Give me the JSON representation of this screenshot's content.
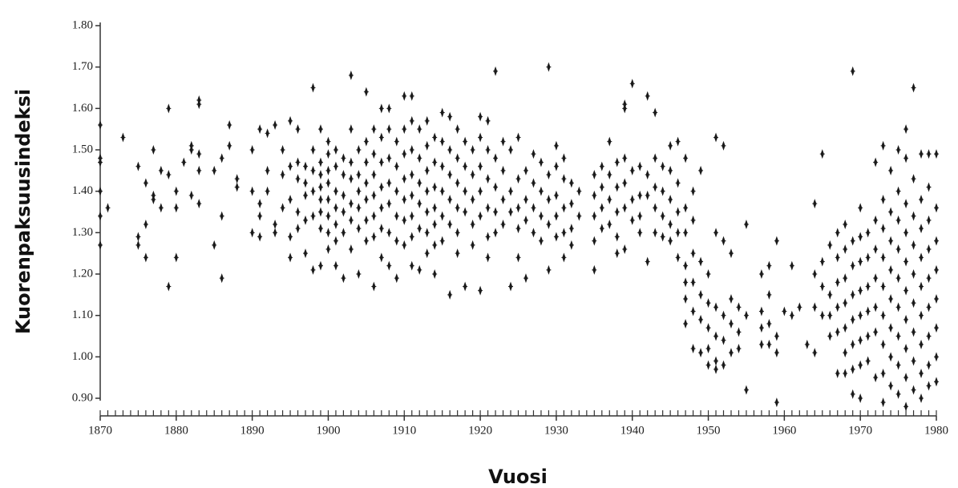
{
  "chart_data": {
    "type": "scatter",
    "xlabel": "Vuosi",
    "ylabel": "Kuorenpaksuusindeksi",
    "color": "#1a1a1a",
    "xlim": [
      1870,
      1980
    ],
    "ylim": [
      0.9,
      1.8
    ],
    "xticks": [
      1870,
      1880,
      1890,
      1900,
      1910,
      1920,
      1930,
      1940,
      1950,
      1960,
      1970,
      1980
    ],
    "xminorticks": [
      1870,
      1871,
      1872,
      1873,
      1874,
      1875,
      1876,
      1877,
      1878,
      1879,
      1880,
      1881,
      1882,
      1883,
      1884,
      1885,
      1886,
      1887,
      1888,
      1889,
      1890,
      1891,
      1892,
      1893,
      1894,
      1895,
      1896,
      1897,
      1898,
      1899,
      1900,
      1901,
      1902,
      1903,
      1904,
      1905,
      1906,
      1907,
      1908,
      1909,
      1910,
      1911,
      1912,
      1913,
      1914,
      1915,
      1916,
      1917,
      1918,
      1919,
      1920,
      1921,
      1922,
      1923,
      1924,
      1925,
      1926,
      1927,
      1928,
      1929,
      1930,
      1931,
      1932,
      1933,
      1934,
      1935,
      1936,
      1937,
      1938,
      1939,
      1940,
      1941,
      1942,
      1943,
      1944,
      1945,
      1946,
      1947,
      1948,
      1949,
      1950,
      1951,
      1952,
      1953,
      1954,
      1955,
      1956,
      1957,
      1958,
      1959,
      1960,
      1961,
      1962,
      1963,
      1964,
      1965,
      1966,
      1967,
      1968,
      1969,
      1970,
      1971,
      1972,
      1973,
      1974,
      1975,
      1976,
      1977,
      1978,
      1979,
      1980
    ],
    "yticks": [
      {
        "value": 0.9,
        "label": "0.90"
      },
      {
        "value": 1.0,
        "label": "1.00"
      },
      {
        "value": 1.1,
        "label": "1.10"
      },
      {
        "value": 1.2,
        "label": "1.20"
      },
      {
        "value": 1.3,
        "label": "1.30"
      },
      {
        "value": 1.4,
        "label": "1.40"
      },
      {
        "value": 1.5,
        "label": "1.50"
      },
      {
        "value": 1.6,
        "label": "1.60"
      },
      {
        "value": 1.7,
        "label": "1.70"
      },
      {
        "value": 1.8,
        "label": "1.80"
      }
    ],
    "x": [
      1870,
      1870,
      1870,
      1870,
      1870,
      1870,
      1871,
      1873,
      1875,
      1875,
      1875,
      1876,
      1876,
      1876,
      1877,
      1877,
      1877,
      1878,
      1878,
      1879,
      1879,
      1879,
      1880,
      1880,
      1880,
      1881,
      1882,
      1882,
      1882,
      1883,
      1883,
      1883,
      1883,
      1883,
      1885,
      1885,
      1886,
      1886,
      1886,
      1887,
      1887,
      1888,
      1888,
      1890,
      1890,
      1890,
      1891,
      1891,
      1891,
      1891,
      1892,
      1892,
      1892,
      1893,
      1893,
      1893,
      1894,
      1894,
      1894,
      1895,
      1895,
      1895,
      1895,
      1895,
      1896,
      1896,
      1896,
      1896,
      1896,
      1897,
      1897,
      1897,
      1897,
      1897,
      1898,
      1898,
      1898,
      1898,
      1898,
      1898,
      1899,
      1899,
      1899,
      1899,
      1899,
      1899,
      1899,
      1899,
      1900,
      1900,
      1900,
      1900,
      1900,
      1900,
      1900,
      1900,
      1901,
      1901,
      1901,
      1901,
      1901,
      1901,
      1901,
      1902,
      1902,
      1902,
      1902,
      1902,
      1902,
      1903,
      1903,
      1903,
      1903,
      1903,
      1903,
      1903,
      1904,
      1904,
      1904,
      1904,
      1904,
      1904,
      1905,
      1905,
      1905,
      1905,
      1905,
      1905,
      1905,
      1906,
      1906,
      1906,
      1906,
      1906,
      1906,
      1906,
      1907,
      1907,
      1907,
      1907,
      1907,
      1907,
      1907,
      1908,
      1908,
      1908,
      1908,
      1908,
      1908,
      1908,
      1909,
      1909,
      1909,
      1909,
      1909,
      1909,
      1910,
      1910,
      1910,
      1910,
      1910,
      1910,
      1910,
      1911,
      1911,
      1911,
      1911,
      1911,
      1911,
      1911,
      1911,
      1912,
      1912,
      1912,
      1912,
      1912,
      1912,
      1913,
      1913,
      1913,
      1913,
      1913,
      1913,
      1913,
      1914,
      1914,
      1914,
      1914,
      1914,
      1914,
      1914,
      1915,
      1915,
      1915,
      1915,
      1915,
      1915,
      1916,
      1916,
      1916,
      1916,
      1916,
      1916,
      1917,
      1917,
      1917,
      1917,
      1917,
      1917,
      1918,
      1918,
      1918,
      1918,
      1918,
      1919,
      1919,
      1919,
      1919,
      1919,
      1920,
      1920,
      1920,
      1920,
      1920,
      1920,
      1921,
      1921,
      1921,
      1921,
      1921,
      1921,
      1922,
      1922,
      1922,
      1922,
      1922,
      1923,
      1923,
      1923,
      1923,
      1924,
      1924,
      1924,
      1924,
      1925,
      1925,
      1925,
      1925,
      1925,
      1926,
      1926,
      1926,
      1926,
      1927,
      1927,
      1927,
      1927,
      1928,
      1928,
      1928,
      1928,
      1929,
      1929,
      1929,
      1929,
      1929,
      1930,
      1930,
      1930,
      1930,
      1930,
      1931,
      1931,
      1931,
      1931,
      1931,
      1932,
      1932,
      1932,
      1932,
      1933,
      1933,
      1935,
      1935,
      1935,
      1935,
      1935,
      1936,
      1936,
      1936,
      1936,
      1937,
      1937,
      1937,
      1937,
      1938,
      1938,
      1938,
      1938,
      1938,
      1939,
      1939,
      1939,
      1939,
      1939,
      1939,
      1940,
      1940,
      1940,
      1940,
      1941,
      1941,
      1941,
      1941,
      1942,
      1942,
      1942,
      1942,
      1943,
      1943,
      1943,
      1943,
      1943,
      1944,
      1944,
      1944,
      1944,
      1945,
      1945,
      1945,
      1945,
      1945,
      1946,
      1946,
      1946,
      1946,
      1946,
      1947,
      1947,
      1947,
      1947,
      1947,
      1947,
      1947,
      1948,
      1948,
      1948,
      1948,
      1948,
      1948,
      1949,
      1949,
      1949,
      1949,
      1949,
      1950,
      1950,
      1950,
      1950,
      1950,
      1951,
      1951,
      1951,
      1951,
      1951,
      1951,
      1952,
      1952,
      1952,
      1952,
      1952,
      1953,
      1953,
      1953,
      1953,
      1954,
      1954,
      1954,
      1955,
      1955,
      1955,
      1957,
      1957,
      1957,
      1957,
      1958,
      1958,
      1958,
      1958,
      1959,
      1959,
      1959,
      1959,
      1960,
      1961,
      1961,
      1962,
      1963,
      1964,
      1964,
      1964,
      1964,
      1965,
      1965,
      1965,
      1965,
      1966,
      1966,
      1966,
      1966,
      1967,
      1967,
      1967,
      1967,
      1967,
      1967,
      1968,
      1968,
      1968,
      1968,
      1968,
      1968,
      1968,
      1969,
      1969,
      1969,
      1969,
      1969,
      1969,
      1969,
      1969,
      1970,
      1970,
      1970,
      1970,
      1970,
      1970,
      1970,
      1970,
      1971,
      1971,
      1971,
      1971,
      1971,
      1971,
      1972,
      1972,
      1972,
      1972,
      1972,
      1972,
      1972,
      1973,
      1973,
      1973,
      1973,
      1973,
      1973,
      1973,
      1973,
      1973,
      1974,
      1974,
      1974,
      1974,
      1974,
      1974,
      1974,
      1974,
      1975,
      1975,
      1975,
      1975,
      1975,
      1975,
      1975,
      1975,
      1975,
      1976,
      1976,
      1976,
      1976,
      1976,
      1976,
      1976,
      1976,
      1976,
      1976,
      1977,
      1977,
      1977,
      1977,
      1977,
      1977,
      1977,
      1977,
      1977,
      1978,
      1978,
      1978,
      1978,
      1978,
      1978,
      1978,
      1978,
      1978,
      1979,
      1979,
      1979,
      1979,
      1979,
      1979,
      1979,
      1979,
      1979,
      1980,
      1980,
      1980,
      1980,
      1980,
      1980,
      1980,
      1980
    ],
    "values": [
      1.56,
      1.48,
      1.47,
      1.4,
      1.34,
      1.27,
      1.36,
      1.53,
      1.46,
      1.29,
      1.27,
      1.42,
      1.32,
      1.24,
      1.5,
      1.39,
      1.38,
      1.45,
      1.36,
      1.6,
      1.44,
      1.17,
      1.4,
      1.36,
      1.24,
      1.47,
      1.51,
      1.5,
      1.39,
      1.62,
      1.61,
      1.49,
      1.45,
      1.37,
      1.45,
      1.27,
      1.48,
      1.34,
      1.19,
      1.56,
      1.51,
      1.43,
      1.41,
      1.4,
      1.3,
      1.5,
      1.55,
      1.37,
      1.34,
      1.29,
      1.54,
      1.45,
      1.4,
      1.56,
      1.32,
      1.3,
      1.5,
      1.44,
      1.36,
      1.57,
      1.46,
      1.38,
      1.29,
      1.24,
      1.55,
      1.47,
      1.43,
      1.35,
      1.31,
      1.46,
      1.42,
      1.39,
      1.33,
      1.25,
      1.65,
      1.5,
      1.45,
      1.4,
      1.34,
      1.21,
      1.55,
      1.47,
      1.44,
      1.41,
      1.38,
      1.35,
      1.31,
      1.22,
      1.52,
      1.49,
      1.45,
      1.42,
      1.38,
      1.34,
      1.3,
      1.26,
      1.5,
      1.46,
      1.4,
      1.36,
      1.32,
      1.28,
      1.22,
      1.48,
      1.44,
      1.39,
      1.35,
      1.3,
      1.19,
      1.68,
      1.55,
      1.47,
      1.43,
      1.37,
      1.33,
      1.26,
      1.5,
      1.44,
      1.4,
      1.36,
      1.31,
      1.2,
      1.64,
      1.52,
      1.47,
      1.42,
      1.38,
      1.33,
      1.28,
      1.55,
      1.49,
      1.44,
      1.39,
      1.34,
      1.29,
      1.17,
      1.6,
      1.53,
      1.47,
      1.41,
      1.36,
      1.31,
      1.24,
      1.6,
      1.55,
      1.48,
      1.42,
      1.37,
      1.3,
      1.22,
      1.52,
      1.46,
      1.4,
      1.34,
      1.28,
      1.19,
      1.63,
      1.55,
      1.49,
      1.43,
      1.38,
      1.33,
      1.27,
      1.63,
      1.57,
      1.5,
      1.44,
      1.39,
      1.34,
      1.29,
      1.22,
      1.55,
      1.48,
      1.42,
      1.37,
      1.31,
      1.21,
      1.57,
      1.51,
      1.45,
      1.4,
      1.35,
      1.3,
      1.25,
      1.53,
      1.47,
      1.41,
      1.36,
      1.32,
      1.27,
      1.2,
      1.59,
      1.52,
      1.46,
      1.4,
      1.34,
      1.28,
      1.58,
      1.5,
      1.44,
      1.38,
      1.32,
      1.15,
      1.55,
      1.48,
      1.42,
      1.36,
      1.3,
      1.25,
      1.52,
      1.46,
      1.4,
      1.35,
      1.17,
      1.5,
      1.44,
      1.38,
      1.32,
      1.27,
      1.58,
      1.53,
      1.46,
      1.4,
      1.34,
      1.16,
      1.57,
      1.5,
      1.43,
      1.36,
      1.29,
      1.24,
      1.69,
      1.48,
      1.41,
      1.35,
      1.3,
      1.52,
      1.45,
      1.38,
      1.32,
      1.5,
      1.4,
      1.35,
      1.17,
      1.53,
      1.43,
      1.36,
      1.31,
      1.24,
      1.45,
      1.38,
      1.33,
      1.19,
      1.49,
      1.42,
      1.36,
      1.3,
      1.47,
      1.4,
      1.34,
      1.28,
      1.7,
      1.44,
      1.38,
      1.32,
      1.21,
      1.51,
      1.46,
      1.39,
      1.34,
      1.29,
      1.48,
      1.43,
      1.36,
      1.3,
      1.24,
      1.42,
      1.37,
      1.31,
      1.27,
      1.4,
      1.34,
      1.44,
      1.39,
      1.34,
      1.28,
      1.21,
      1.46,
      1.41,
      1.36,
      1.31,
      1.52,
      1.44,
      1.38,
      1.32,
      1.47,
      1.41,
      1.35,
      1.29,
      1.25,
      1.61,
      1.6,
      1.48,
      1.42,
      1.36,
      1.26,
      1.66,
      1.45,
      1.38,
      1.33,
      1.46,
      1.39,
      1.34,
      1.3,
      1.63,
      1.44,
      1.39,
      1.23,
      1.59,
      1.48,
      1.41,
      1.36,
      1.3,
      1.46,
      1.4,
      1.34,
      1.29,
      1.51,
      1.45,
      1.38,
      1.32,
      1.28,
      1.52,
      1.42,
      1.35,
      1.3,
      1.24,
      1.48,
      1.36,
      1.3,
      1.22,
      1.18,
      1.14,
      1.08,
      1.4,
      1.33,
      1.25,
      1.18,
      1.11,
      1.02,
      1.45,
      1.23,
      1.15,
      1.09,
      1.01,
      1.2,
      1.13,
      1.07,
      1.02,
      0.98,
      1.53,
      1.3,
      1.12,
      1.05,
      0.99,
      0.97,
      1.51,
      1.28,
      1.1,
      1.04,
      0.98,
      1.25,
      1.14,
      1.08,
      1.01,
      1.12,
      1.06,
      1.02,
      1.32,
      1.1,
      0.92,
      1.2,
      1.11,
      1.07,
      1.03,
      1.22,
      1.15,
      1.08,
      1.03,
      1.28,
      1.05,
      1.01,
      0.89,
      1.11,
      1.22,
      1.1,
      1.12,
      1.03,
      1.37,
      1.2,
      1.12,
      1.01,
      1.49,
      1.23,
      1.17,
      1.1,
      1.27,
      1.15,
      1.1,
      1.05,
      1.3,
      1.24,
      1.18,
      1.12,
      1.06,
      0.96,
      1.32,
      1.26,
      1.19,
      1.13,
      1.07,
      1.01,
      0.96,
      1.69,
      1.28,
      1.22,
      1.15,
      1.09,
      1.03,
      0.97,
      0.91,
      1.36,
      1.29,
      1.23,
      1.16,
      1.1,
      1.04,
      0.98,
      0.9,
      1.3,
      1.24,
      1.17,
      1.11,
      1.05,
      0.99,
      1.47,
      1.33,
      1.26,
      1.19,
      1.12,
      1.06,
      0.95,
      1.51,
      1.38,
      1.31,
      1.24,
      1.17,
      1.1,
      1.03,
      0.96,
      0.89,
      1.45,
      1.35,
      1.28,
      1.21,
      1.14,
      1.07,
      1.0,
      0.93,
      1.5,
      1.4,
      1.33,
      1.26,
      1.19,
      1.12,
      1.05,
      0.98,
      0.91,
      1.55,
      1.48,
      1.37,
      1.3,
      1.23,
      1.16,
      1.09,
      1.02,
      0.95,
      0.88,
      1.65,
      1.43,
      1.34,
      1.27,
      1.2,
      1.13,
      1.06,
      0.99,
      0.92,
      1.49,
      1.38,
      1.31,
      1.24,
      1.17,
      1.1,
      1.03,
      0.96,
      0.9,
      1.49,
      1.41,
      1.33,
      1.26,
      1.19,
      1.12,
      1.05,
      0.98,
      0.93,
      1.49,
      1.36,
      1.28,
      1.21,
      1.14,
      1.07,
      1.0,
      0.94
    ]
  }
}
